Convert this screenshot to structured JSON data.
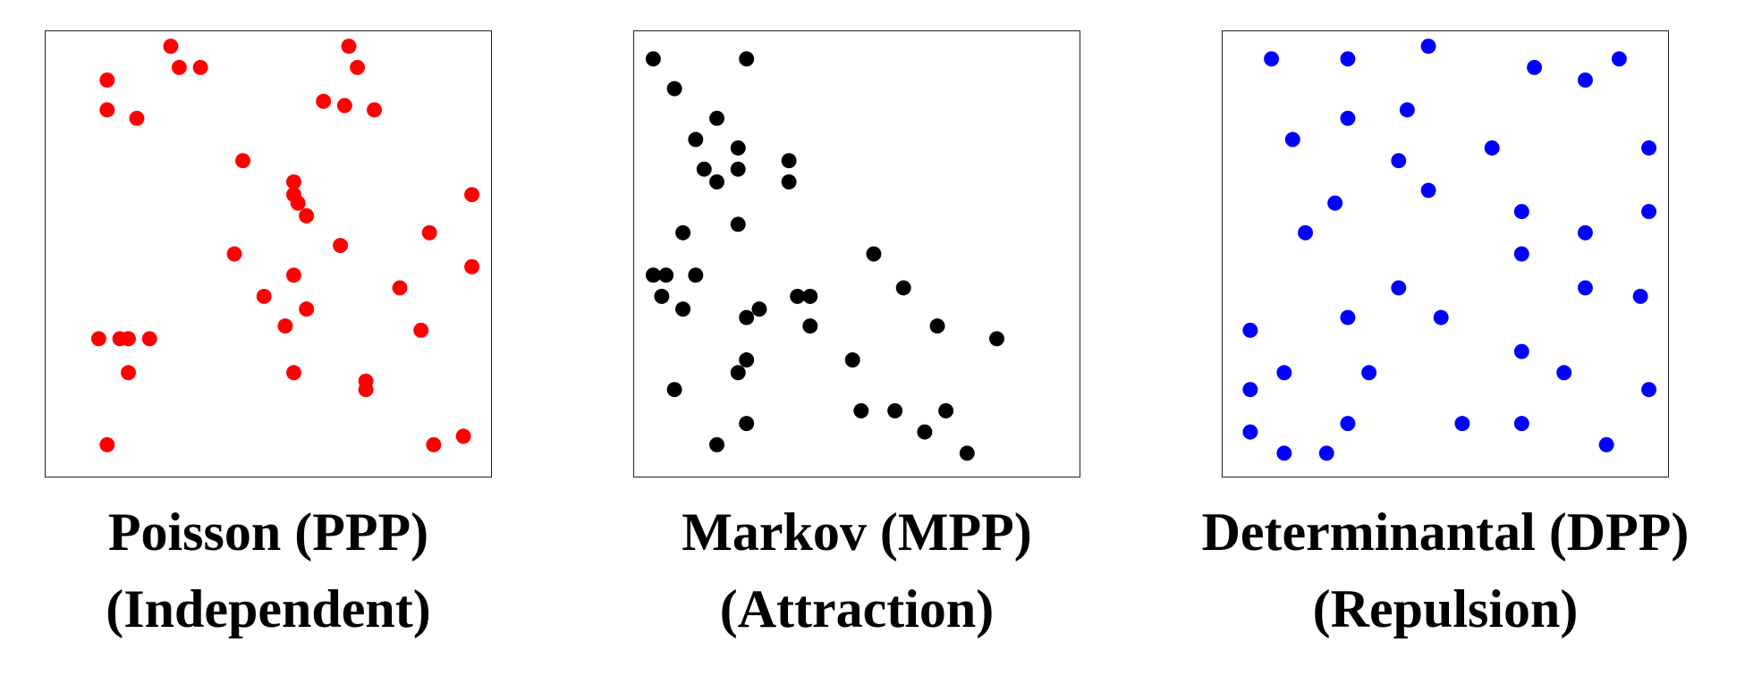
{
  "chart_data": [
    {
      "type": "scatter",
      "title": "Poisson (PPP)",
      "subtitle": "(Independent)",
      "color": "#ff0000",
      "xlim": [
        0,
        100
      ],
      "ylim": [
        0,
        100
      ],
      "grid": false,
      "points": [
        [
          27,
          99
        ],
        [
          29,
          94
        ],
        [
          34,
          94
        ],
        [
          12,
          91
        ],
        [
          12,
          84
        ],
        [
          19,
          82
        ],
        [
          69,
          99
        ],
        [
          71,
          94
        ],
        [
          68,
          85
        ],
        [
          63,
          86
        ],
        [
          75,
          84
        ],
        [
          44,
          72
        ],
        [
          56,
          67
        ],
        [
          98,
          64
        ],
        [
          57,
          62
        ],
        [
          59,
          59
        ],
        [
          67,
          52
        ],
        [
          88,
          55
        ],
        [
          42,
          50
        ],
        [
          98,
          47
        ],
        [
          56,
          45
        ],
        [
          81,
          42
        ],
        [
          49,
          40
        ],
        [
          59,
          37
        ],
        [
          54,
          33
        ],
        [
          86,
          32
        ],
        [
          10,
          30
        ],
        [
          15,
          30
        ],
        [
          17,
          30
        ],
        [
          22,
          30
        ],
        [
          17,
          22
        ],
        [
          56,
          22
        ],
        [
          73,
          20
        ],
        [
          73,
          18
        ],
        [
          12,
          5
        ],
        [
          89,
          5
        ],
        [
          96,
          7
        ],
        [
          56,
          64
        ]
      ]
    },
    {
      "type": "scatter",
      "title": "Markov (MPP)",
      "subtitle": "(Attraction)",
      "color": "#000000",
      "xlim": [
        0,
        100
      ],
      "ylim": [
        0,
        100
      ],
      "grid": false,
      "points": [
        [
          2,
          96
        ],
        [
          24,
          96
        ],
        [
          7,
          89
        ],
        [
          17,
          82
        ],
        [
          12,
          77
        ],
        [
          22,
          75
        ],
        [
          34,
          72
        ],
        [
          14,
          70
        ],
        [
          17,
          67
        ],
        [
          22,
          70
        ],
        [
          34,
          67
        ],
        [
          22,
          57
        ],
        [
          9,
          55
        ],
        [
          2,
          45
        ],
        [
          5,
          45
        ],
        [
          12,
          45
        ],
        [
          4,
          40
        ],
        [
          9,
          37
        ],
        [
          54,
          50
        ],
        [
          61,
          42
        ],
        [
          36,
          40
        ],
        [
          39,
          40
        ],
        [
          27,
          37
        ],
        [
          24,
          35
        ],
        [
          39,
          33
        ],
        [
          69,
          33
        ],
        [
          83,
          30
        ],
        [
          24,
          25
        ],
        [
          22,
          22
        ],
        [
          49,
          25
        ],
        [
          7,
          18
        ],
        [
          51,
          13
        ],
        [
          59,
          13
        ],
        [
          71,
          13
        ],
        [
          24,
          10
        ],
        [
          66,
          8
        ],
        [
          17,
          5
        ],
        [
          76,
          3
        ]
      ]
    },
    {
      "type": "scatter",
      "title": "Determinantal (DPP)",
      "subtitle": "(Repulsion)",
      "color": "#0000ff",
      "xlim": [
        0,
        100
      ],
      "ylim": [
        0,
        100
      ],
      "grid": false,
      "points": [
        [
          9,
          96
        ],
        [
          27,
          96
        ],
        [
          46,
          99
        ],
        [
          71,
          94
        ],
        [
          91,
          96
        ],
        [
          83,
          91
        ],
        [
          27,
          82
        ],
        [
          41,
          84
        ],
        [
          14,
          77
        ],
        [
          39,
          72
        ],
        [
          61,
          75
        ],
        [
          98,
          75
        ],
        [
          46,
          65
        ],
        [
          24,
          62
        ],
        [
          68,
          60
        ],
        [
          98,
          60
        ],
        [
          17,
          55
        ],
        [
          83,
          55
        ],
        [
          68,
          50
        ],
        [
          39,
          42
        ],
        [
          83,
          42
        ],
        [
          96,
          40
        ],
        [
          27,
          35
        ],
        [
          49,
          35
        ],
        [
          4,
          32
        ],
        [
          68,
          27
        ],
        [
          12,
          22
        ],
        [
          32,
          22
        ],
        [
          78,
          22
        ],
        [
          4,
          18
        ],
        [
          98,
          18
        ],
        [
          27,
          10
        ],
        [
          54,
          10
        ],
        [
          68,
          10
        ],
        [
          4,
          8
        ],
        [
          88,
          5
        ],
        [
          12,
          3
        ],
        [
          22,
          3
        ]
      ]
    }
  ]
}
